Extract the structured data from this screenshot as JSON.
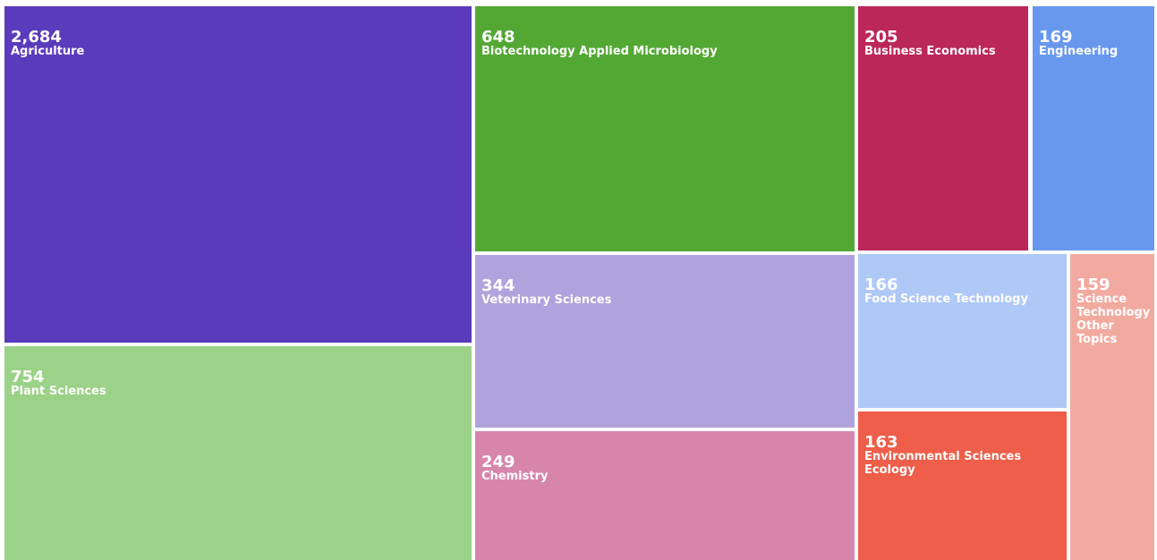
{
  "chart_data": {
    "type": "treemap",
    "categories": [
      "Agriculture",
      "Plant Sciences",
      "Biotechnology Applied Microbiology",
      "Veterinary Sciences",
      "Chemistry",
      "Business Economics",
      "Engineering",
      "Food Science Technology",
      "Environmental Sciences Ecology",
      "Science Technology Other Topics"
    ],
    "values": [
      2684,
      754,
      648,
      344,
      249,
      205,
      169,
      166,
      163,
      159
    ],
    "value_labels": [
      "2,684",
      "754",
      "648",
      "344",
      "249",
      "205",
      "169",
      "166",
      "163",
      "159"
    ],
    "colors": [
      "#5a3bbb",
      "#9bd288",
      "#53a834",
      "#b0a2dc",
      "#d885ac",
      "#bc2759",
      "#6898ee",
      "#afc8f6",
      "#ee5e4a",
      "#f2aaa0"
    ]
  }
}
